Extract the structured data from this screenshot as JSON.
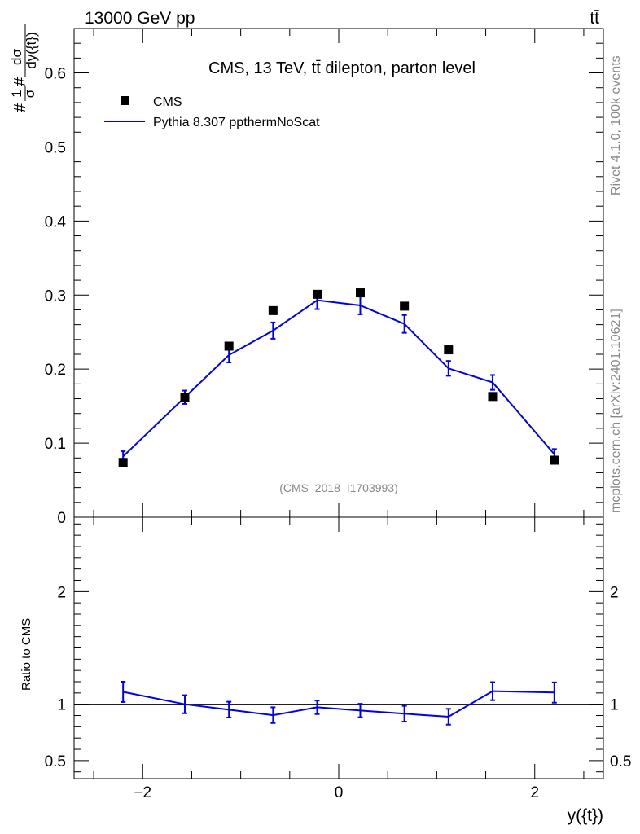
{
  "header": {
    "energy_label": "13000 GeV pp",
    "process_label": "tt̄"
  },
  "side_text": {
    "rivet": "Rivet 4.1.0,  100k events",
    "mcplots": "mcplots.cern.ch [arXiv:2401.10621]"
  },
  "colors": {
    "mc": "#0000ee",
    "data": "#000000",
    "side_text": "#888888"
  },
  "chart_data": [
    {
      "type": "line",
      "title": "CMS, 13 TeV, tt̄ dilepton, parton level",
      "watermark": "(CMS_2018_I1703993)",
      "ylabel": "#1/σ#dσ/dy({t})",
      "ylim": [
        0,
        0.66
      ],
      "yticks": [
        0,
        0.1,
        0.2,
        0.3,
        0.4,
        0.5,
        0.6
      ],
      "ytick_labels": [
        "0",
        "0.1",
        "0.2",
        "0.3",
        "0.4",
        "0.5",
        "0.6"
      ],
      "xlim": [
        -2.7,
        2.7
      ],
      "legend": {
        "data_label": "CMS",
        "mc_label": "Pythia 8.307 ppthermNoScat",
        "position": "top-left"
      },
      "series": [
        {
          "name": "CMS",
          "style": "markers",
          "x": [
            -2.2,
            -1.57,
            -1.12,
            -0.67,
            -0.22,
            0.22,
            0.67,
            1.12,
            1.57,
            2.2
          ],
          "values": [
            0.074,
            0.162,
            0.231,
            0.279,
            0.301,
            0.303,
            0.285,
            0.226,
            0.163,
            0.077
          ]
        },
        {
          "name": "Pythia 8.307 ppthermNoScat",
          "style": "line",
          "x": [
            -2.2,
            -1.57,
            -1.12,
            -0.67,
            -0.22,
            0.22,
            0.67,
            1.12,
            1.57,
            2.2
          ],
          "values": [
            0.082,
            0.162,
            0.219,
            0.252,
            0.293,
            0.286,
            0.261,
            0.201,
            0.182,
            0.085
          ],
          "errors": [
            0.007,
            0.009,
            0.01,
            0.011,
            0.012,
            0.012,
            0.012,
            0.01,
            0.01,
            0.007
          ]
        }
      ]
    },
    {
      "type": "line",
      "ylabel": "Ratio to CMS",
      "xlabel": "y({t})",
      "ylim": [
        0.34,
        2.66
      ],
      "yticks": [
        0.5,
        1,
        2
      ],
      "ytick_labels": [
        "0.5",
        "1",
        "2"
      ],
      "reference_line": 1,
      "xlim": [
        -2.7,
        2.7
      ],
      "xticks": [
        -2,
        0,
        2
      ],
      "xtick_labels": [
        "−2",
        "0",
        "2"
      ],
      "series": [
        {
          "name": "Pythia 8.307 ppthermNoScat / CMS",
          "x": [
            -2.2,
            -1.57,
            -1.12,
            -0.67,
            -0.22,
            0.22,
            0.67,
            1.12,
            1.57,
            2.2
          ],
          "values": [
            1.11,
            1.0,
            0.952,
            0.903,
            0.973,
            0.944,
            0.916,
            0.889,
            1.116,
            1.104
          ],
          "errors": [
            0.09,
            0.08,
            0.07,
            0.07,
            0.06,
            0.06,
            0.07,
            0.07,
            0.08,
            0.09
          ]
        }
      ]
    }
  ]
}
